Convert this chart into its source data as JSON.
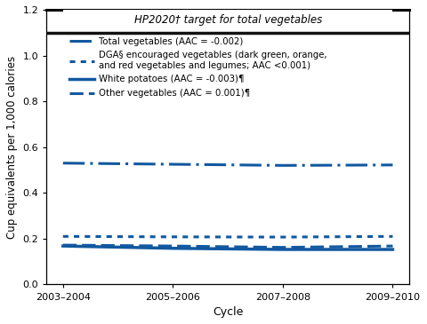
{
  "title_annotation": "HP2020† target for total vegetables",
  "xlabel": "Cycle",
  "ylabel": "Cup equivalents per 1,000 calories",
  "ylim": [
    0.0,
    1.2
  ],
  "yticks": [
    0.0,
    0.2,
    0.4,
    0.6,
    0.8,
    1.0,
    1.2
  ],
  "xtick_labels": [
    "2003–2004",
    "2005–2006",
    "2007–2008",
    "2009–2010"
  ],
  "hp2020_target": 1.1,
  "line_color": "#1158a0",
  "bg_color": "#ffffff",
  "series": {
    "total_veg_upper": {
      "y": [
        0.53,
        0.525,
        0.52,
        0.522
      ],
      "label": "Total vegetables (AAC = -0.002)",
      "dash_pattern": [
        8,
        2,
        1,
        2
      ],
      "linewidth": 2.2
    },
    "dga_veg": {
      "y": [
        0.21,
        0.208,
        0.207,
        0.21
      ],
      "label": "DGA§ encouraged vegetables (dark green, orange,\nand red vegetables and legumes; AAC <0.001)",
      "linewidth": 2.2
    },
    "white_potatoes": {
      "y": [
        0.168,
        0.158,
        0.153,
        0.153
      ],
      "label": "White potatoes (AAC = -0.003)¶",
      "linewidth": 2.5
    },
    "other_veg": {
      "y": [
        0.172,
        0.168,
        0.162,
        0.168
      ],
      "label": "Other vegetables (AAC = 0.001)¶",
      "linewidth": 2.2
    }
  }
}
